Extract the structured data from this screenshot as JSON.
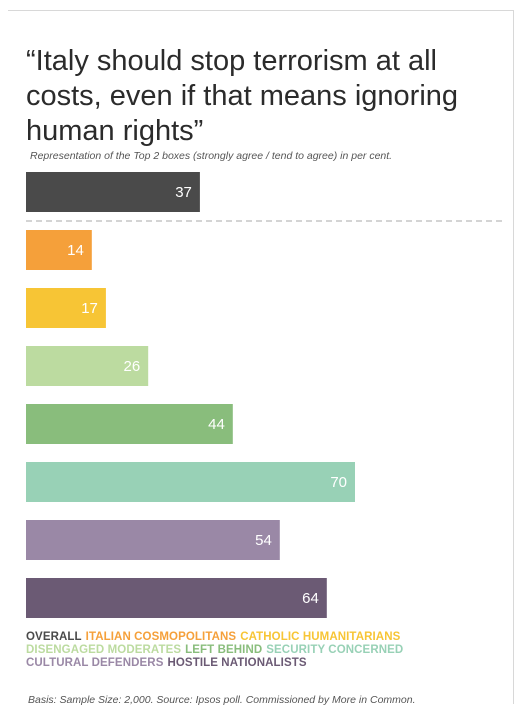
{
  "title": "“Italy should stop terrorism at all costs, even if that means ignoring human rights”",
  "subtitle": "Representation of the Top 2 boxes (strongly agree / tend to agree) in per cent.",
  "basis": "Basis: Sample Size: 2,000. Source: Ipsos poll. Commissioned by More in Common.",
  "colors": {
    "overall": "#4a4a4a",
    "italian_cosmopolitans": "#f5a03a",
    "catholic_humanitarians": "#f7c535",
    "disengaged_moderates": "#bcdba0",
    "left_behind": "#89bd7c",
    "security_concerned": "#98d1b6",
    "cultural_defenders": "#9a88a6",
    "hostile_nationalists": "#6b5a74"
  },
  "legend": [
    {
      "label": "OVERALL",
      "color": "#4a4a4a"
    },
    {
      "label": "ITALIAN COSMOPOLITANS",
      "color": "#f5a03a"
    },
    {
      "label": "CATHOLIC HUMANITARIANS",
      "color": "#f7c535"
    },
    {
      "label": "DISENGAGED MODERATES",
      "color": "#bcdba0"
    },
    {
      "label": "LEFT BEHIND",
      "color": "#89bd7c"
    },
    {
      "label": "SECURITY CONCERNED",
      "color": "#98d1b6"
    },
    {
      "label": "CULTURAL DEFENDERS",
      "color": "#9a88a6"
    },
    {
      "label": "HOSTILE NATIONALISTS",
      "color": "#6b5a74"
    }
  ],
  "chart_data": {
    "type": "bar",
    "orientation": "horizontal",
    "title": "“Italy should stop terrorism at all costs, even if that means ignoring human rights”",
    "subtitle": "Representation of the Top 2 boxes (strongly agree / tend to agree) in per cent.",
    "categories": [
      "OVERALL",
      "ITALIAN COSMOPOLITANS",
      "CATHOLIC HUMANITARIANS",
      "DISENGAGED MODERATES",
      "LEFT BEHIND",
      "SECURITY CONCERNED",
      "CULTURAL DEFENDERS",
      "HOSTILE NATIONALISTS"
    ],
    "values": [
      37,
      14,
      17,
      26,
      44,
      70,
      54,
      64
    ],
    "bar_colors": [
      "#4a4a4a",
      "#f5a03a",
      "#f7c535",
      "#bcdba0",
      "#89bd7c",
      "#98d1b6",
      "#9a88a6",
      "#6b5a74"
    ],
    "xlim": [
      0,
      100
    ],
    "data_labels": true,
    "grid": false,
    "separator_after_first": true,
    "legend_position": "bottom"
  }
}
